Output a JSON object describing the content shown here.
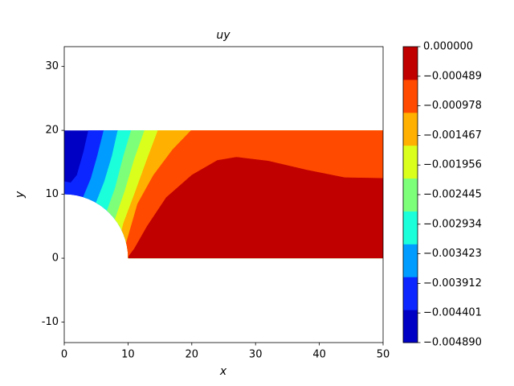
{
  "chart_data": {
    "type": "contourf",
    "title": "uy",
    "x_label": "x",
    "y_label": "y",
    "xlim": [
      0,
      50
    ],
    "ylim": [
      -13.2,
      33.1
    ],
    "xticks": [
      0,
      10,
      20,
      30,
      40,
      50
    ],
    "yticks": [
      -10,
      0,
      10,
      20,
      30
    ],
    "domain": {
      "x": [
        0,
        50
      ],
      "y": [
        0,
        20
      ],
      "hole_radius": 10
    },
    "levels": [
      -0.00489,
      -0.004347,
      -0.003803,
      -0.00326,
      -0.002717,
      -0.002173,
      -0.00163,
      -0.001087,
      -0.000543,
      0
    ],
    "colors": [
      "#0000c4",
      "#0c26ff",
      "#009cff",
      "#1cffdb",
      "#7dff7a",
      "#dbff1c",
      "#ffb000",
      "#ff4a00",
      "#c00000"
    ],
    "boundaries": [
      {
        "x": [
          3.8,
          3,
          2,
          1,
          0
        ],
        "y": [
          20,
          16.5,
          13,
          11.8,
          12
        ]
      },
      {
        "x": [
          6.2,
          5.2,
          4.2,
          3
        ],
        "y": [
          20,
          16,
          12.5,
          9.6
        ]
      },
      {
        "x": [
          8.4,
          7.5,
          6.3,
          5
        ],
        "y": [
          20,
          16,
          12,
          8.7
        ]
      },
      {
        "x": [
          10.5,
          9.3,
          8,
          6.7
        ],
        "y": [
          20,
          16,
          11,
          7.4
        ]
      },
      {
        "x": [
          12.6,
          11,
          9.5,
          7.9
        ],
        "y": [
          20,
          15.5,
          10.5,
          5.9
        ]
      },
      {
        "x": [
          14.7,
          13,
          11,
          9.3,
          8.9
        ],
        "y": [
          20,
          15.5,
          10,
          5.5,
          3.9
        ]
      },
      {
        "x": [
          19.9,
          17,
          14,
          11.5,
          9.7
        ],
        "y": [
          20,
          17,
          13,
          8.5,
          2.3
        ]
      },
      {
        "x": [
          50,
          44,
          38,
          32,
          27,
          24,
          20,
          16,
          13,
          11,
          10.1
        ],
        "y": [
          12.5,
          12.6,
          13.8,
          15.2,
          15.8,
          15.3,
          13,
          9.5,
          5,
          1.5,
          0.3
        ]
      }
    ],
    "colorbar_ticks": [
      {
        "value": 0,
        "label": "0.000000"
      },
      {
        "value": -0.000489,
        "label": "−0.000489"
      },
      {
        "value": -0.000978,
        "label": "−0.000978"
      },
      {
        "value": -0.001467,
        "label": "−0.001467"
      },
      {
        "value": -0.001956,
        "label": "−0.001956"
      },
      {
        "value": -0.002445,
        "label": "−0.002445"
      },
      {
        "value": -0.002934,
        "label": "−0.002934"
      },
      {
        "value": -0.003423,
        "label": "−0.003423"
      },
      {
        "value": -0.003912,
        "label": "−0.003912"
      },
      {
        "value": -0.004401,
        "label": "−0.004401"
      },
      {
        "value": -0.00489,
        "label": "−0.004890"
      }
    ]
  }
}
